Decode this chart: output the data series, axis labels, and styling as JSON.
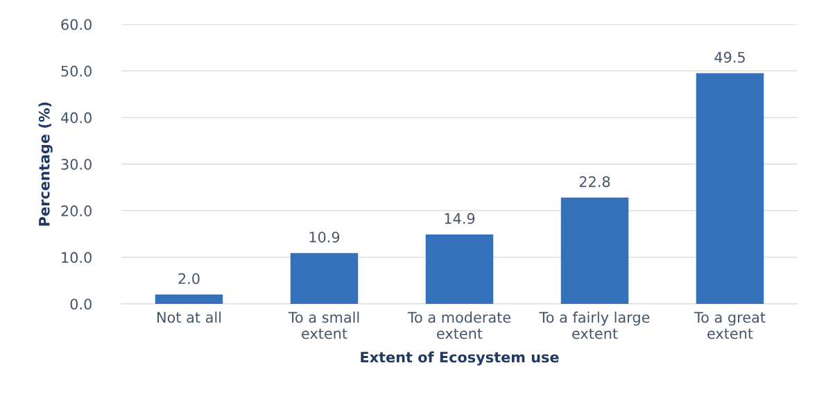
{
  "chart_data": {
    "type": "bar",
    "xlabel": "Extent of Ecosystem use",
    "ylabel": "Percentage (%)",
    "categories": [
      "Not at all",
      "To a small\nextent",
      "To a moderate\nextent",
      "To a fairly large\nextent",
      "To a great\nextent"
    ],
    "values": [
      2.0,
      10.9,
      14.9,
      22.8,
      49.5
    ],
    "color": "#3571bb",
    "ylim": [
      0,
      60
    ],
    "yticks": [
      {
        "value": 0,
        "label": "0.0"
      },
      {
        "value": 10,
        "label": "10.0"
      },
      {
        "value": 20,
        "label": "20.0"
      },
      {
        "value": 30,
        "label": "30.0"
      },
      {
        "value": 40,
        "label": "40.0"
      },
      {
        "value": 50,
        "label": "50.0"
      },
      {
        "value": 60,
        "label": "60.0"
      }
    ],
    "grid": "y",
    "value_labels": [
      "2.0",
      "10.9",
      "14.9",
      "22.8",
      "49.5"
    ]
  }
}
